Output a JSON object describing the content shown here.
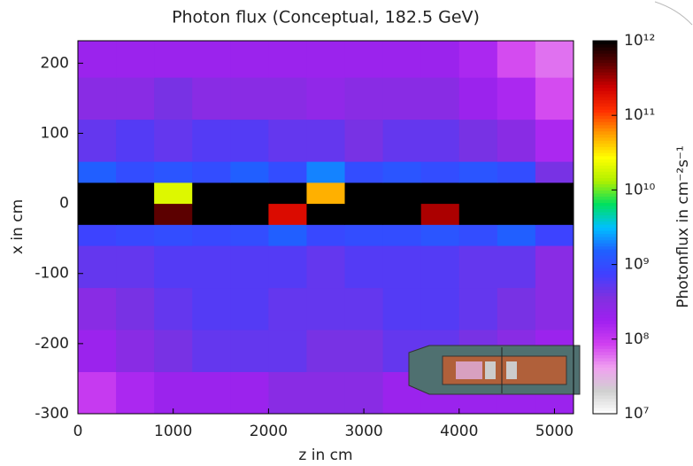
{
  "chart_data": {
    "type": "heatmap",
    "title": "Photon flux (Conceptual, 182.5 GeV)",
    "xlabel": "z in cm",
    "ylabel": "x in cm",
    "colorbar_label": "Photonflux in cm⁻²s⁻¹",
    "xlim": [
      0,
      5200
    ],
    "ylim": [
      -300,
      232
    ],
    "xticks": [
      0,
      1000,
      2000,
      3000,
      4000,
      5000
    ],
    "yticks": [
      -300,
      -200,
      -100,
      0,
      100,
      200
    ],
    "zlim": [
      10000000.0,
      1000000000000.0
    ],
    "zlog": true,
    "zticks": [
      {
        "value": 10000000.0,
        "label": "10⁷"
      },
      {
        "value": 100000000.0,
        "label": "10⁸"
      },
      {
        "value": 1000000000.0,
        "label": "10⁹"
      },
      {
        "value": 10000000000.0,
        "label": "10¹⁰"
      },
      {
        "value": 100000000000.0,
        "label": "10¹¹"
      },
      {
        "value": 1000000000000.0,
        "label": "10¹²"
      }
    ],
    "colorscale": [
      "#ffffff",
      "#d0d0d0",
      "#f0a0f0",
      "#d040f0",
      "#a020f0",
      "#8030e0",
      "#4040ff",
      "#2060ff",
      "#00c0ff",
      "#00e060",
      "#b0f000",
      "#ffff00",
      "#ffa000",
      "#ff3000",
      "#d00000",
      "#600000",
      "#000000"
    ],
    "xbins": [
      0,
      400,
      800,
      1200,
      1600,
      2000,
      2400,
      2800,
      3200,
      3600,
      4000,
      4400,
      4800,
      5200
    ],
    "ybins": [
      -300,
      -240,
      -180,
      -120,
      -60,
      -30,
      0,
      30,
      60,
      120,
      180,
      232
    ],
    "z": [
      [
        100000000.0,
        150000000.0,
        200000000.0,
        200000000.0,
        200000000.0,
        300000000.0,
        300000000.0,
        300000000.0,
        200000000.0,
        200000000.0,
        200000000.0,
        200000000.0,
        200000000.0
      ],
      [
        200000000.0,
        300000000.0,
        400000000.0,
        500000000.0,
        500000000.0,
        500000000.0,
        400000000.0,
        400000000.0,
        500000000.0,
        500000000.0,
        400000000.0,
        300000000.0,
        200000000.0
      ],
      [
        300000000.0,
        400000000.0,
        500000000.0,
        600000000.0,
        600000000.0,
        500000000.0,
        500000000.0,
        500000000.0,
        600000000.0,
        600000000.0,
        500000000.0,
        400000000.0,
        300000000.0
      ],
      [
        500000000.0,
        500000000.0,
        600000000.0,
        600000000.0,
        600000000.0,
        600000000.0,
        500000000.0,
        600000000.0,
        600000000.0,
        600000000.0,
        500000000.0,
        500000000.0,
        300000000.0
      ],
      [
        800000000.0,
        900000000.0,
        1000000000.0,
        900000000.0,
        1000000000.0,
        1500000000.0,
        900000000.0,
        1000000000.0,
        1000000000.0,
        1200000000.0,
        1000000000.0,
        1500000000.0,
        800000000.0
      ],
      [
        1000000000000.0,
        1000000000000.0,
        500000000000.0,
        1000000000000.0,
        1000000000000.0,
        200000000000.0,
        1000000000000.0,
        1000000000000.0,
        1000000000000.0,
        300000000000.0,
        1000000000000.0,
        1000000000000.0,
        1000000000000.0
      ],
      [
        1000000000000.0,
        1000000000000.0,
        20000000000.0,
        1000000000000.0,
        1000000000000.0,
        1000000000000.0,
        50000000000.0,
        1000000000000.0,
        1000000000000.0,
        1000000000000.0,
        1000000000000.0,
        1000000000000.0,
        1000000000000.0
      ],
      [
        1500000000.0,
        1000000000.0,
        1200000000.0,
        1000000000.0,
        1500000000.0,
        1000000000.0,
        2000000000.0,
        1000000000.0,
        1200000000.0,
        1000000000.0,
        1200000000.0,
        1000000000.0,
        400000000.0
      ],
      [
        500000000.0,
        600000000.0,
        500000000.0,
        600000000.0,
        600000000.0,
        500000000.0,
        500000000.0,
        400000000.0,
        500000000.0,
        500000000.0,
        400000000.0,
        300000000.0,
        150000000.0
      ],
      [
        300000000.0,
        300000000.0,
        400000000.0,
        300000000.0,
        300000000.0,
        300000000.0,
        250000000.0,
        300000000.0,
        300000000.0,
        300000000.0,
        200000000.0,
        150000000.0,
        80000000.0
      ],
      [
        200000000.0,
        200000000.0,
        200000000.0,
        200000000.0,
        200000000.0,
        200000000.0,
        200000000.0,
        200000000.0,
        200000000.0,
        200000000.0,
        150000000.0,
        80000000.0,
        60000000.0
      ]
    ]
  }
}
